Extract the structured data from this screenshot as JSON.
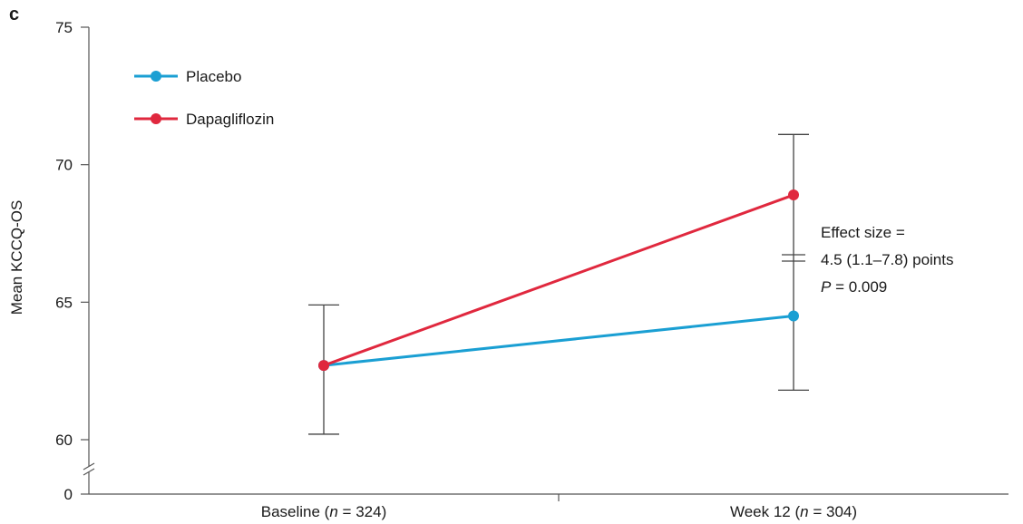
{
  "panel_label": "c",
  "chart_data": {
    "type": "line",
    "ylabel": "Mean KCCQ-OS",
    "yticks": [
      0,
      60,
      65,
      70,
      75
    ],
    "ylim_broken": [
      60,
      75
    ],
    "axis_break": true,
    "categories": [
      "Baseline",
      "Week 12"
    ],
    "category_labels": [
      {
        "pre": "Baseline (",
        "n": "n",
        "post": " = 324)"
      },
      {
        "pre": "Week 12 (",
        "n": "n",
        "post": " = 304)"
      }
    ],
    "series": [
      {
        "name": "Placebo",
        "color": "#1a9fd3",
        "values": [
          62.7,
          64.5
        ]
      },
      {
        "name": "Dapagliflozin",
        "color": "#e0283e",
        "values": [
          62.7,
          68.9
        ]
      }
    ],
    "error_bars": [
      {
        "category": "Baseline",
        "low": 60.2,
        "high": 64.9
      },
      {
        "category": "Week 12",
        "low": 61.8,
        "high": 71.1
      }
    ],
    "legend_position": "top-left",
    "annotation": {
      "line1": "Effect size =",
      "line2": "4.5 (1.1–7.8) points",
      "line3_italic": "P",
      "line3_rest": " = 0.009"
    }
  }
}
